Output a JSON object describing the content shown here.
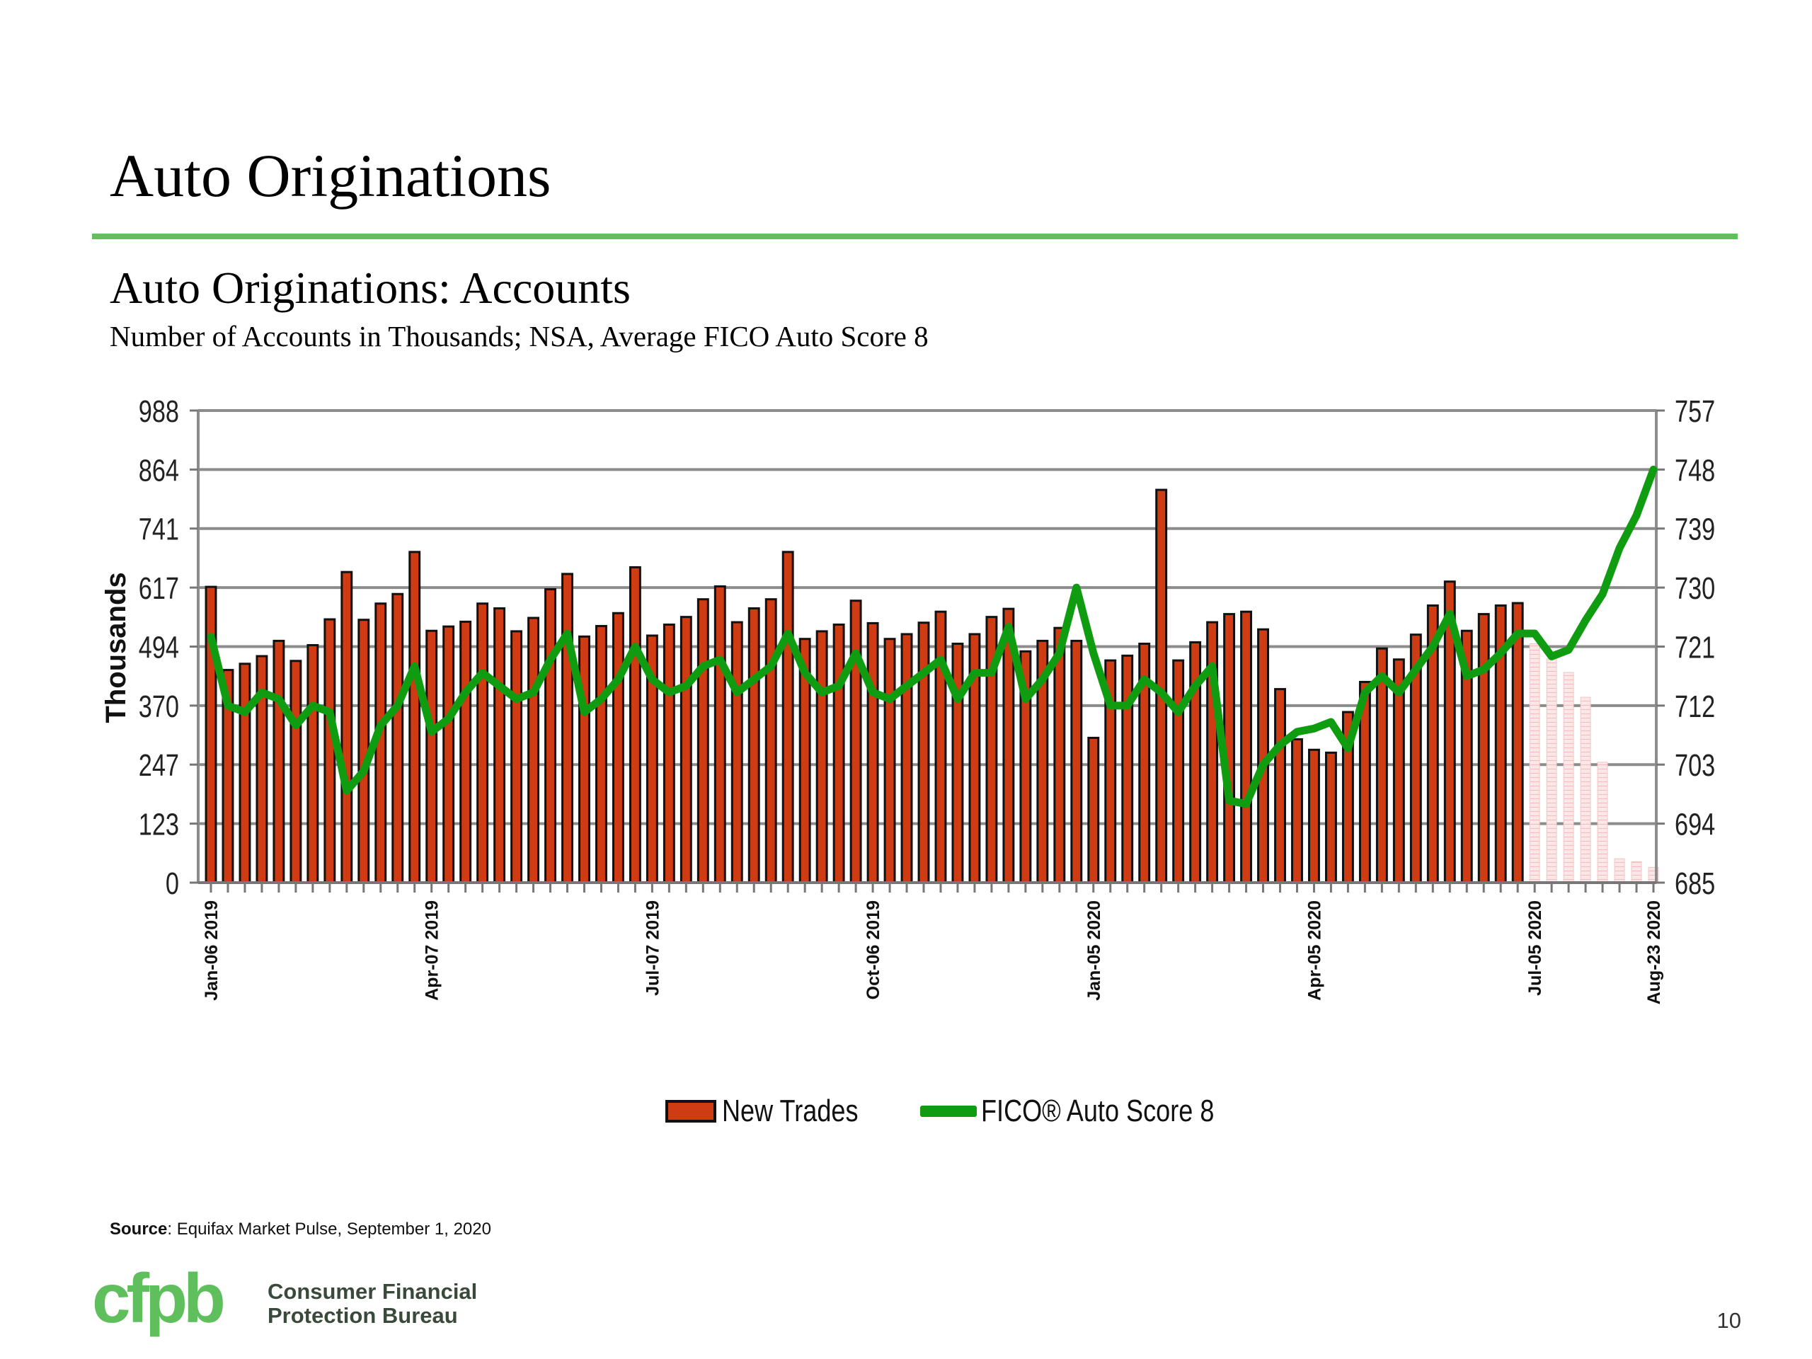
{
  "slide": {
    "title": "Auto Originations",
    "subtitle": "Auto Originations: Accounts",
    "subsubtitle": "Number of Accounts in Thousands; NSA, Average FICO Auto Score 8",
    "source_label": "Source",
    "source_text": ": Equifax Market Pulse, September 1, 2020",
    "org_line1": "Consumer Financial",
    "org_line2": "Protection Bureau",
    "logo_text": "cfpb",
    "page_number": "10",
    "accent_color": "#5fc05c"
  },
  "chart_data": {
    "type": "bar",
    "title": "",
    "ylabel": "Thousands",
    "y2label": "",
    "ylim": [
      0,
      988
    ],
    "y2lim": [
      685,
      757
    ],
    "yticks": [
      "0",
      "123",
      "247",
      "370",
      "494",
      "617",
      "741",
      "864",
      "988"
    ],
    "y2ticks": [
      "685",
      "694",
      "703",
      "712",
      "721",
      "730",
      "739",
      "748",
      "757"
    ],
    "xtick_labels": [
      {
        "index": 0,
        "label": "Jan-06 2019"
      },
      {
        "index": 13,
        "label": "Apr-07 2019"
      },
      {
        "index": 26,
        "label": "Jul-07 2019"
      },
      {
        "index": 39,
        "label": "Oct-06 2019"
      },
      {
        "index": 52,
        "label": "Jan-05 2020"
      },
      {
        "index": 65,
        "label": "Apr-05 2020"
      },
      {
        "index": 78,
        "label": "Jul-05 2020"
      },
      {
        "index": 85,
        "label": "Aug-23 2020"
      }
    ],
    "bar_color": "#cf3b12",
    "line_color": "#109c10",
    "grid": true,
    "legend_position": "bottom",
    "series": [
      {
        "name": "New Trades",
        "kind": "bar",
        "axis": "left",
        "values": [
          619,
          445,
          458,
          474,
          506,
          464,
          497,
          551,
          650,
          550,
          584,
          604,
          692,
          527,
          536,
          546,
          584,
          574,
          526,
          554,
          614,
          646,
          515,
          537,
          564,
          660,
          517,
          540,
          556,
          593,
          620,
          545,
          574,
          593,
          692,
          510,
          526,
          540,
          590,
          543,
          510,
          520,
          544,
          567,
          500,
          520,
          556,
          573,
          484,
          506,
          533,
          506,
          303,
          465,
          475,
          500,
          822,
          465,
          503,
          545,
          562,
          567,
          530,
          405,
          300,
          278,
          272,
          357,
          420,
          490,
          467,
          519,
          580,
          630,
          527,
          562,
          580,
          585,
          500,
          468,
          440,
          388,
          252,
          50,
          44,
          32
        ],
        "hatched_from_index": 78
      },
      {
        "name": "FICO® Auto Score 8",
        "kind": "line",
        "axis": "right",
        "values": [
          722.5,
          712,
          711,
          714,
          713,
          709,
          712,
          711,
          699,
          702,
          709,
          712,
          718,
          708,
          710,
          714,
          717,
          715,
          713,
          714,
          719,
          723,
          711,
          713,
          716,
          721,
          716,
          714,
          715,
          718,
          719,
          714,
          716,
          718,
          723,
          717,
          714,
          715,
          720,
          714,
          713,
          715,
          717,
          719,
          713,
          717,
          717,
          724,
          713,
          716,
          720,
          730,
          720,
          712,
          712,
          716,
          714,
          711,
          715,
          718,
          697.5,
          697,
          703,
          706,
          708,
          708.5,
          709.5,
          705.5,
          714,
          716.5,
          714,
          717.5,
          721,
          726,
          716.5,
          717.5,
          720,
          723,
          723,
          719.5,
          720.5,
          725,
          729,
          736,
          741,
          748
        ]
      }
    ]
  }
}
